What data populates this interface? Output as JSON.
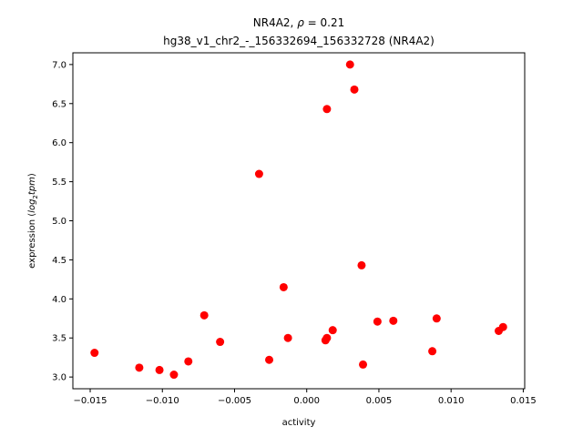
{
  "chart_data": {
    "type": "scatter",
    "title_line1_prefix": "NR4A2, ",
    "title_rho_symbol": "ρ",
    "title_rho_value": " = 0.21",
    "title_line2": "hg38_v1_chr2_-_156332694_156332728 (NR4A2)",
    "xlabel": "activity",
    "ylabel_prefix": "expression (",
    "ylabel_log": "log",
    "ylabel_sub": "2",
    "ylabel_tpm": "tpm",
    "ylabel_suffix": ")",
    "xlim": [
      -0.0162,
      0.0151
    ],
    "ylim": [
      2.85,
      7.15
    ],
    "xticks": [
      -0.015,
      -0.01,
      -0.005,
      0.0,
      0.005,
      0.01,
      0.015
    ],
    "xtick_labels": [
      "−0.015",
      "−0.010",
      "−0.005",
      "0.000",
      "0.005",
      "0.010",
      "0.015"
    ],
    "yticks": [
      3.0,
      3.5,
      4.0,
      4.5,
      5.0,
      5.5,
      6.0,
      6.5,
      7.0
    ],
    "ytick_labels": [
      "3.0",
      "3.5",
      "4.0",
      "4.5",
      "5.0",
      "5.5",
      "6.0",
      "6.5",
      "7.0"
    ],
    "grid": false,
    "marker_color": "#ff0000",
    "points": [
      {
        "x": -0.0147,
        "y": 3.31
      },
      {
        "x": -0.0116,
        "y": 3.12
      },
      {
        "x": -0.0102,
        "y": 3.09
      },
      {
        "x": -0.0092,
        "y": 3.03
      },
      {
        "x": -0.0082,
        "y": 3.2
      },
      {
        "x": -0.0071,
        "y": 3.79
      },
      {
        "x": -0.006,
        "y": 3.45
      },
      {
        "x": -0.0033,
        "y": 5.6
      },
      {
        "x": -0.0026,
        "y": 3.22
      },
      {
        "x": -0.0016,
        "y": 4.15
      },
      {
        "x": -0.0013,
        "y": 3.5
      },
      {
        "x": 0.0013,
        "y": 3.47
      },
      {
        "x": 0.0014,
        "y": 3.5
      },
      {
        "x": 0.0014,
        "y": 6.43
      },
      {
        "x": 0.0018,
        "y": 3.6
      },
      {
        "x": 0.003,
        "y": 7.0
      },
      {
        "x": 0.0033,
        "y": 6.68
      },
      {
        "x": 0.0038,
        "y": 4.43
      },
      {
        "x": 0.0039,
        "y": 3.16
      },
      {
        "x": 0.0049,
        "y": 3.71
      },
      {
        "x": 0.006,
        "y": 3.72
      },
      {
        "x": 0.0087,
        "y": 3.33
      },
      {
        "x": 0.009,
        "y": 3.75
      },
      {
        "x": 0.0133,
        "y": 3.59
      },
      {
        "x": 0.0136,
        "y": 3.64
      }
    ]
  }
}
